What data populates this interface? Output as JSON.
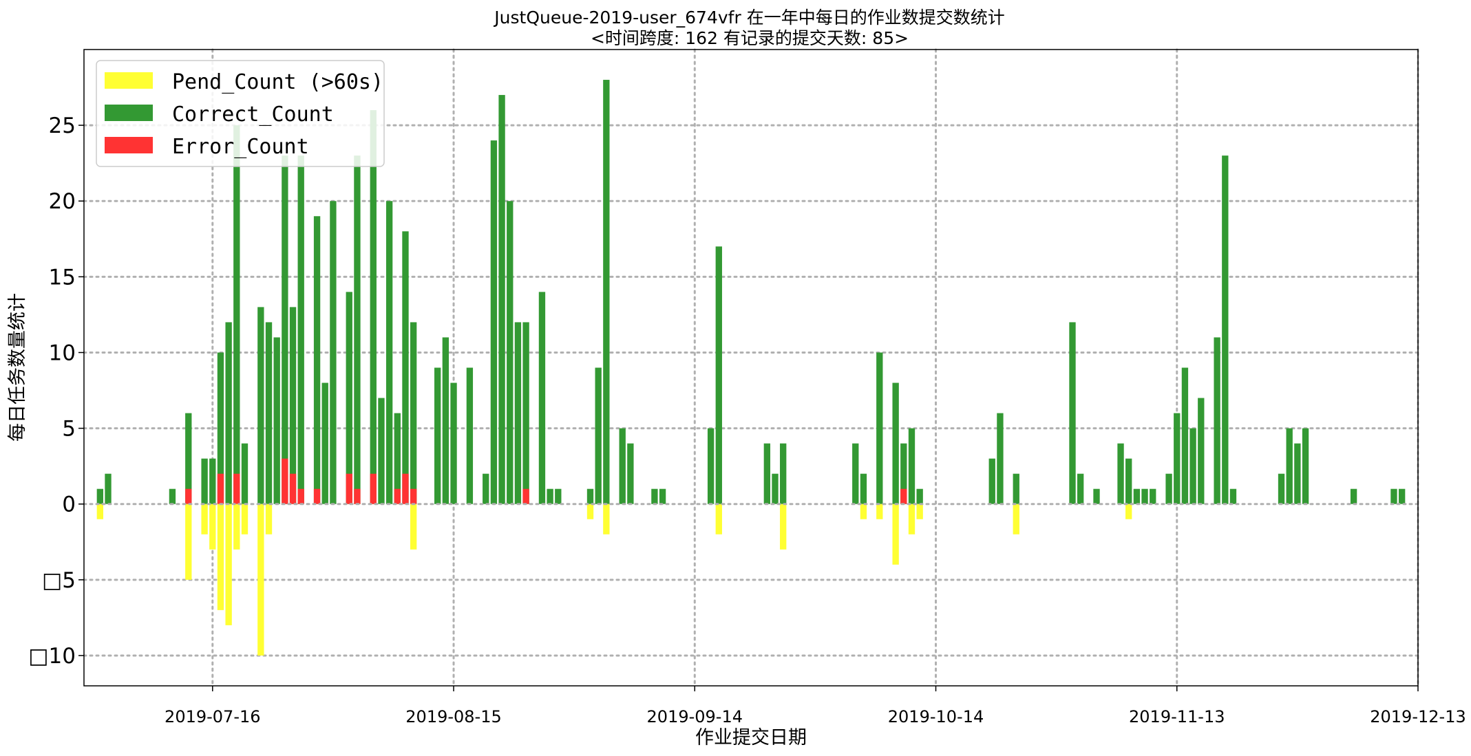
{
  "chart_data": {
    "type": "bar",
    "title": "JustQueue-2019-user_674vfr 在一年中每日的作业数提交数统计",
    "subtitle": "<时间跨度: 162  有记录的提交天数: 85>",
    "xlabel": "作业提交日期",
    "ylabel": "每日任务数量统计",
    "x_range": [
      "2019-06-30",
      "2019-12-13"
    ],
    "ylim": [
      -12,
      30
    ],
    "y_ticks": [
      -10,
      -5,
      0,
      5,
      10,
      15,
      20,
      25
    ],
    "y_tick_labels": [
      "□10",
      "□5",
      "0",
      "5",
      "10",
      "15",
      "20",
      "25"
    ],
    "x_ticks": [
      "2019-07-16",
      "2019-08-15",
      "2019-09-14",
      "2019-10-14",
      "2019-11-13",
      "2019-12-13"
    ],
    "grid": true,
    "legend_position": "top-left",
    "colors": {
      "pend": "#ffff33",
      "correct": "#339933",
      "error": "#ff3333",
      "grid": "#b0b0b0"
    },
    "series": [
      {
        "name": "Pend_Count (>60s)",
        "key": "pend"
      },
      {
        "name": "Correct_Count",
        "key": "correct"
      },
      {
        "name": "Error_Count",
        "key": "error"
      }
    ],
    "days": [
      {
        "date": "2019-07-02",
        "correct": 1,
        "error": 0,
        "pend": -1
      },
      {
        "date": "2019-07-03",
        "correct": 2,
        "error": 0,
        "pend": 0
      },
      {
        "date": "2019-07-11",
        "correct": 1,
        "error": 0,
        "pend": 0
      },
      {
        "date": "2019-07-13",
        "correct": 5,
        "error": 1,
        "pend": -5
      },
      {
        "date": "2019-07-15",
        "correct": 3,
        "error": 0,
        "pend": -2
      },
      {
        "date": "2019-07-16",
        "correct": 3,
        "error": 0,
        "pend": -3
      },
      {
        "date": "2019-07-17",
        "correct": 8,
        "error": 2,
        "pend": -7
      },
      {
        "date": "2019-07-18",
        "correct": 12,
        "error": 0,
        "pend": -8
      },
      {
        "date": "2019-07-19",
        "correct": 23,
        "error": 2,
        "pend": -3
      },
      {
        "date": "2019-07-20",
        "correct": 4,
        "error": 0,
        "pend": -2
      },
      {
        "date": "2019-07-22",
        "correct": 13,
        "error": 0,
        "pend": -10
      },
      {
        "date": "2019-07-23",
        "correct": 12,
        "error": 0,
        "pend": -2
      },
      {
        "date": "2019-07-24",
        "correct": 11,
        "error": 0,
        "pend": 0
      },
      {
        "date": "2019-07-25",
        "correct": 20,
        "error": 3,
        "pend": 0
      },
      {
        "date": "2019-07-26",
        "correct": 11,
        "error": 2,
        "pend": 0
      },
      {
        "date": "2019-07-27",
        "correct": 22,
        "error": 1,
        "pend": 0
      },
      {
        "date": "2019-07-29",
        "correct": 18,
        "error": 1,
        "pend": 0
      },
      {
        "date": "2019-07-30",
        "correct": 8,
        "error": 0,
        "pend": 0
      },
      {
        "date": "2019-07-31",
        "correct": 20,
        "error": 0,
        "pend": 0
      },
      {
        "date": "2019-08-02",
        "correct": 12,
        "error": 2,
        "pend": 0
      },
      {
        "date": "2019-08-03",
        "correct": 22,
        "error": 1,
        "pend": 0
      },
      {
        "date": "2019-08-05",
        "correct": 24,
        "error": 2,
        "pend": 0
      },
      {
        "date": "2019-08-06",
        "correct": 7,
        "error": 0,
        "pend": 0
      },
      {
        "date": "2019-08-07",
        "correct": 20,
        "error": 0,
        "pend": 0
      },
      {
        "date": "2019-08-08",
        "correct": 5,
        "error": 1,
        "pend": 0
      },
      {
        "date": "2019-08-09",
        "correct": 16,
        "error": 2,
        "pend": 0
      },
      {
        "date": "2019-08-10",
        "correct": 11,
        "error": 1,
        "pend": -3
      },
      {
        "date": "2019-08-13",
        "correct": 9,
        "error": 0,
        "pend": 0
      },
      {
        "date": "2019-08-14",
        "correct": 11,
        "error": 0,
        "pend": 0
      },
      {
        "date": "2019-08-15",
        "correct": 8,
        "error": 0,
        "pend": 0
      },
      {
        "date": "2019-08-17",
        "correct": 9,
        "error": 0,
        "pend": 0
      },
      {
        "date": "2019-08-19",
        "correct": 2,
        "error": 0,
        "pend": 0
      },
      {
        "date": "2019-08-20",
        "correct": 24,
        "error": 0,
        "pend": 0
      },
      {
        "date": "2019-08-21",
        "correct": 27,
        "error": 0,
        "pend": 0
      },
      {
        "date": "2019-08-22",
        "correct": 20,
        "error": 0,
        "pend": 0
      },
      {
        "date": "2019-08-23",
        "correct": 12,
        "error": 0,
        "pend": 0
      },
      {
        "date": "2019-08-24",
        "correct": 11,
        "error": 1,
        "pend": 0
      },
      {
        "date": "2019-08-26",
        "correct": 14,
        "error": 0,
        "pend": 0
      },
      {
        "date": "2019-08-27",
        "correct": 1,
        "error": 0,
        "pend": 0
      },
      {
        "date": "2019-08-28",
        "correct": 1,
        "error": 0,
        "pend": 0
      },
      {
        "date": "2019-09-01",
        "correct": 1,
        "error": 0,
        "pend": -1
      },
      {
        "date": "2019-09-02",
        "correct": 9,
        "error": 0,
        "pend": 0
      },
      {
        "date": "2019-09-03",
        "correct": 28,
        "error": 0,
        "pend": -2
      },
      {
        "date": "2019-09-05",
        "correct": 5,
        "error": 0,
        "pend": 0
      },
      {
        "date": "2019-09-06",
        "correct": 4,
        "error": 0,
        "pend": 0
      },
      {
        "date": "2019-09-09",
        "correct": 1,
        "error": 0,
        "pend": 0
      },
      {
        "date": "2019-09-10",
        "correct": 1,
        "error": 0,
        "pend": 0
      },
      {
        "date": "2019-09-16",
        "correct": 5,
        "error": 0,
        "pend": 0
      },
      {
        "date": "2019-09-17",
        "correct": 17,
        "error": 0,
        "pend": -2
      },
      {
        "date": "2019-09-23",
        "correct": 4,
        "error": 0,
        "pend": 0
      },
      {
        "date": "2019-09-24",
        "correct": 2,
        "error": 0,
        "pend": 0
      },
      {
        "date": "2019-09-25",
        "correct": 4,
        "error": 0,
        "pend": -3
      },
      {
        "date": "2019-10-04",
        "correct": 4,
        "error": 0,
        "pend": 0
      },
      {
        "date": "2019-10-05",
        "correct": 2,
        "error": 0,
        "pend": -1
      },
      {
        "date": "2019-10-07",
        "correct": 10,
        "error": 0,
        "pend": -1
      },
      {
        "date": "2019-10-09",
        "correct": 8,
        "error": 0,
        "pend": -4
      },
      {
        "date": "2019-10-10",
        "correct": 3,
        "error": 1,
        "pend": 0
      },
      {
        "date": "2019-10-11",
        "correct": 5,
        "error": 0,
        "pend": -2
      },
      {
        "date": "2019-10-12",
        "correct": 1,
        "error": 0,
        "pend": -1
      },
      {
        "date": "2019-10-21",
        "correct": 3,
        "error": 0,
        "pend": 0
      },
      {
        "date": "2019-10-22",
        "correct": 6,
        "error": 0,
        "pend": 0
      },
      {
        "date": "2019-10-24",
        "correct": 2,
        "error": 0,
        "pend": -2
      },
      {
        "date": "2019-10-31",
        "correct": 12,
        "error": 0,
        "pend": 0
      },
      {
        "date": "2019-11-01",
        "correct": 2,
        "error": 0,
        "pend": 0
      },
      {
        "date": "2019-11-03",
        "correct": 1,
        "error": 0,
        "pend": 0
      },
      {
        "date": "2019-11-06",
        "correct": 4,
        "error": 0,
        "pend": 0
      },
      {
        "date": "2019-11-07",
        "correct": 3,
        "error": 0,
        "pend": -1
      },
      {
        "date": "2019-11-08",
        "correct": 1,
        "error": 0,
        "pend": 0
      },
      {
        "date": "2019-11-09",
        "correct": 1,
        "error": 0,
        "pend": 0
      },
      {
        "date": "2019-11-10",
        "correct": 1,
        "error": 0,
        "pend": 0
      },
      {
        "date": "2019-11-12",
        "correct": 2,
        "error": 0,
        "pend": 0
      },
      {
        "date": "2019-11-13",
        "correct": 6,
        "error": 0,
        "pend": 0
      },
      {
        "date": "2019-11-14",
        "correct": 9,
        "error": 0,
        "pend": 0
      },
      {
        "date": "2019-11-15",
        "correct": 5,
        "error": 0,
        "pend": 0
      },
      {
        "date": "2019-11-16",
        "correct": 7,
        "error": 0,
        "pend": 0
      },
      {
        "date": "2019-11-18",
        "correct": 11,
        "error": 0,
        "pend": 0
      },
      {
        "date": "2019-11-19",
        "correct": 23,
        "error": 0,
        "pend": 0
      },
      {
        "date": "2019-11-20",
        "correct": 1,
        "error": 0,
        "pend": 0
      },
      {
        "date": "2019-11-26",
        "correct": 2,
        "error": 0,
        "pend": 0
      },
      {
        "date": "2019-11-27",
        "correct": 5,
        "error": 0,
        "pend": 0
      },
      {
        "date": "2019-11-28",
        "correct": 4,
        "error": 0,
        "pend": 0
      },
      {
        "date": "2019-11-29",
        "correct": 5,
        "error": 0,
        "pend": 0
      },
      {
        "date": "2019-12-05",
        "correct": 1,
        "error": 0,
        "pend": 0
      },
      {
        "date": "2019-12-10",
        "correct": 1,
        "error": 0,
        "pend": 0
      },
      {
        "date": "2019-12-11",
        "correct": 1,
        "error": 0,
        "pend": 0
      }
    ]
  }
}
